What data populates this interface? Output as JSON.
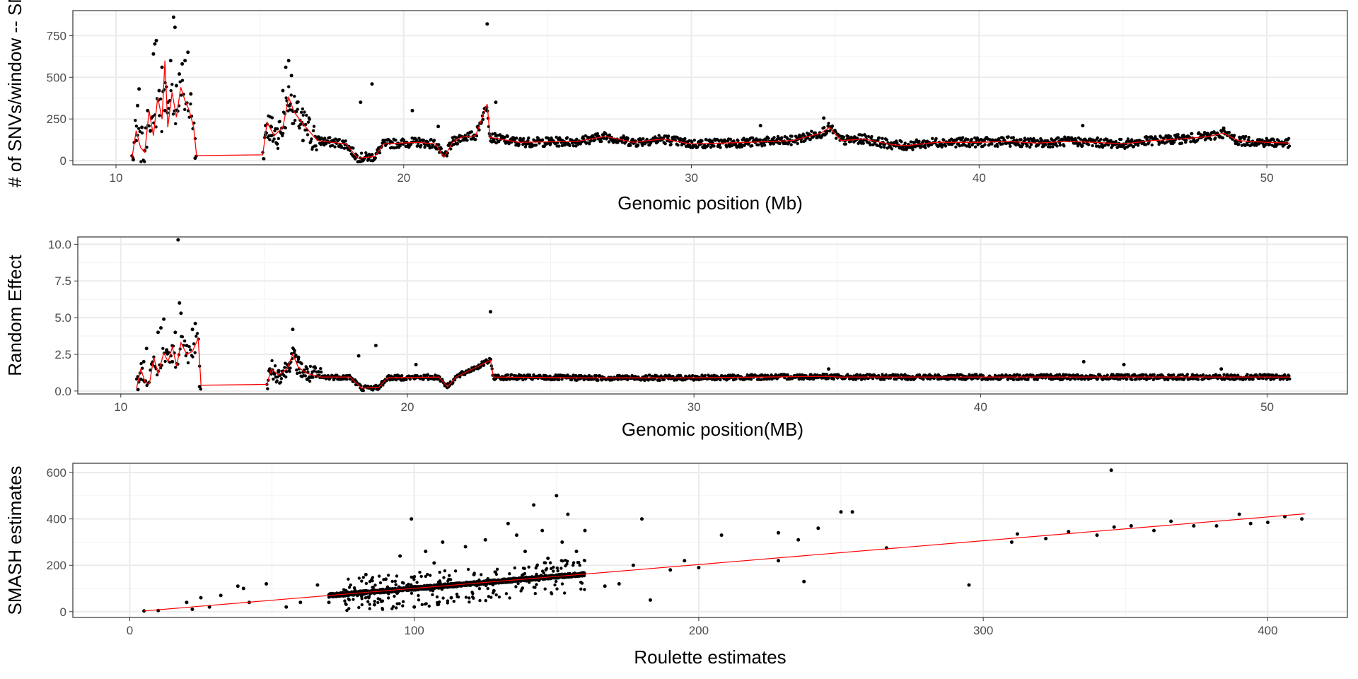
{
  "chart_data": [
    {
      "type": "scatter",
      "xlabel": "Genomic position (Mb)",
      "ylabel": "# of SNVs/window -- SM",
      "xlim": [
        8.5,
        52.8
      ],
      "ylim": [
        -25,
        900
      ],
      "xticks": [
        10,
        20,
        30,
        40,
        50
      ],
      "yticks": [
        0,
        250,
        500,
        750
      ],
      "grid": true,
      "legend": "none",
      "series": [
        {
          "points": [
            [
              10.6,
              5
            ],
            [
              10.7,
              120
            ],
            [
              10.75,
              330
            ],
            [
              10.8,
              430
            ],
            [
              10.9,
              200
            ],
            [
              11.0,
              60
            ],
            [
              11.1,
              300
            ],
            [
              11.2,
              180
            ],
            [
              11.3,
              640
            ],
            [
              11.35,
              700
            ],
            [
              11.4,
              720
            ],
            [
              11.5,
              420
            ],
            [
              11.6,
              560
            ],
            [
              11.7,
              300
            ],
            [
              11.8,
              350
            ],
            [
              11.9,
              600
            ],
            [
              12.0,
              860
            ],
            [
              12.05,
              800
            ],
            [
              12.1,
              450
            ],
            [
              12.2,
              520
            ],
            [
              12.3,
              580
            ],
            [
              12.4,
              600
            ],
            [
              12.5,
              650
            ],
            [
              12.6,
              400
            ],
            [
              12.75,
              15
            ],
            [
              15.2,
              210
            ],
            [
              15.4,
              150
            ],
            [
              15.6,
              100
            ],
            [
              15.8,
              420
            ],
            [
              15.9,
              560
            ],
            [
              16.0,
              600
            ],
            [
              16.1,
              510
            ],
            [
              16.3,
              350
            ],
            [
              16.5,
              120
            ],
            [
              18.5,
              350
            ],
            [
              18.9,
              460
            ],
            [
              20.3,
              300
            ],
            [
              21.2,
              205
            ],
            [
              22.9,
              820
            ],
            [
              23.2,
              350
            ],
            [
              32.4,
              210
            ],
            [
              34.6,
              255
            ],
            [
              43.6,
              210
            ],
            [
              48.5,
              195
            ]
          ]
        }
      ],
      "trend": {
        "color": "#ff0000",
        "points": [
          [
            10.55,
            10
          ],
          [
            10.7,
            180
          ],
          [
            10.85,
            80
          ],
          [
            11.0,
            50
          ],
          [
            11.15,
            300
          ],
          [
            11.3,
            150
          ],
          [
            11.45,
            380
          ],
          [
            11.6,
            250
          ],
          [
            11.7,
            600
          ],
          [
            11.8,
            200
          ],
          [
            11.95,
            410
          ],
          [
            12.1,
            260
          ],
          [
            12.25,
            440
          ],
          [
            12.4,
            360
          ],
          [
            12.55,
            300
          ],
          [
            12.7,
            200
          ],
          [
            12.8,
            30
          ],
          [
            15.1,
            35
          ],
          [
            15.25,
            230
          ],
          [
            15.5,
            150
          ],
          [
            15.8,
            200
          ],
          [
            16.0,
            380
          ],
          [
            16.2,
            290
          ],
          [
            16.5,
            220
          ],
          [
            17.0,
            120
          ],
          [
            18.0,
            100
          ],
          [
            18.4,
            15
          ],
          [
            19.0,
            25
          ],
          [
            19.3,
            100
          ],
          [
            20.5,
            110
          ],
          [
            21.1,
            100
          ],
          [
            21.4,
            20
          ],
          [
            21.7,
            110
          ],
          [
            22.0,
            140
          ],
          [
            22.5,
            150
          ],
          [
            22.9,
            340
          ],
          [
            23.0,
            140
          ],
          [
            24.0,
            110
          ],
          [
            26.0,
            115
          ],
          [
            27.0,
            145
          ],
          [
            28.0,
            110
          ],
          [
            29.0,
            130
          ],
          [
            30.0,
            100
          ],
          [
            32.0,
            110
          ],
          [
            33.5,
            120
          ],
          [
            34.5,
            165
          ],
          [
            34.8,
            200
          ],
          [
            35.2,
            120
          ],
          [
            36.0,
            130
          ],
          [
            37.0,
            95
          ],
          [
            37.5,
            90
          ],
          [
            38.5,
            110
          ],
          [
            40.0,
            110
          ],
          [
            41.0,
            115
          ],
          [
            42.0,
            105
          ],
          [
            43.0,
            115
          ],
          [
            44.0,
            110
          ],
          [
            45.0,
            100
          ],
          [
            46.0,
            120
          ],
          [
            47.0,
            130
          ],
          [
            48.0,
            145
          ],
          [
            48.5,
            165
          ],
          [
            49.0,
            120
          ],
          [
            49.5,
            115
          ],
          [
            50.0,
            110
          ],
          [
            50.8,
            105
          ]
        ]
      }
    },
    {
      "type": "scatter",
      "xlabel": "Genomic position(MB)",
      "ylabel": "Random Effect",
      "xlim": [
        8.5,
        52.8
      ],
      "ylim": [
        -0.2,
        10.5
      ],
      "xticks": [
        10,
        20,
        30,
        40,
        50
      ],
      "ytick_labels": [
        "0.0",
        "2.5",
        "5.0",
        "7.5",
        "10.0"
      ],
      "yticks": [
        0,
        2.5,
        5,
        7.5,
        10
      ],
      "grid": true,
      "legend": "none",
      "series": [
        {
          "points": [
            [
              10.6,
              0.1
            ],
            [
              10.7,
              0.8
            ],
            [
              10.8,
              2.0
            ],
            [
              10.9,
              2.9
            ],
            [
              11.1,
              1.8
            ],
            [
              11.3,
              4.0
            ],
            [
              11.4,
              4.3
            ],
            [
              11.5,
              4.9
            ],
            [
              11.6,
              2.8
            ],
            [
              11.8,
              2.0
            ],
            [
              11.9,
              4.0
            ],
            [
              12.0,
              10.3
            ],
            [
              12.05,
              6.0
            ],
            [
              12.1,
              5.3
            ],
            [
              12.3,
              3.1
            ],
            [
              12.5,
              4.2
            ],
            [
              12.6,
              4.6
            ],
            [
              12.75,
              0.3
            ],
            [
              15.2,
              1.5
            ],
            [
              15.5,
              1.3
            ],
            [
              15.9,
              1.9
            ],
            [
              16.0,
              4.2
            ],
            [
              16.2,
              2.3
            ],
            [
              16.5,
              0.8
            ],
            [
              18.3,
              2.4
            ],
            [
              18.9,
              3.1
            ],
            [
              20.3,
              1.8
            ],
            [
              22.9,
              5.4
            ],
            [
              23.1,
              1.0
            ],
            [
              34.7,
              1.5
            ],
            [
              43.6,
              2.0
            ],
            [
              45.0,
              1.8
            ],
            [
              48.4,
              1.5
            ]
          ]
        }
      ],
      "trend": {
        "color": "#ff0000",
        "points": [
          [
            10.55,
            0.2
          ],
          [
            10.7,
            1.5
          ],
          [
            10.85,
            0.6
          ],
          [
            11.0,
            0.5
          ],
          [
            11.15,
            2.3
          ],
          [
            11.3,
            1.2
          ],
          [
            11.5,
            2.6
          ],
          [
            11.65,
            2.0
          ],
          [
            11.8,
            3.0
          ],
          [
            11.95,
            1.7
          ],
          [
            12.1,
            3.3
          ],
          [
            12.3,
            2.5
          ],
          [
            12.5,
            2.7
          ],
          [
            12.7,
            3.6
          ],
          [
            12.8,
            0.4
          ],
          [
            15.1,
            0.45
          ],
          [
            15.25,
            1.5
          ],
          [
            15.5,
            1.1
          ],
          [
            15.8,
            1.5
          ],
          [
            16.0,
            2.5
          ],
          [
            16.2,
            1.6
          ],
          [
            16.5,
            1.2
          ],
          [
            17.0,
            0.95
          ],
          [
            18.0,
            0.95
          ],
          [
            18.4,
            0.2
          ],
          [
            19.0,
            0.25
          ],
          [
            19.3,
            0.9
          ],
          [
            21.1,
            0.95
          ],
          [
            21.4,
            0.3
          ],
          [
            21.7,
            0.95
          ],
          [
            22.9,
            2.1
          ],
          [
            23.0,
            0.95
          ],
          [
            26.0,
            0.9
          ],
          [
            30.0,
            0.9
          ],
          [
            34.7,
            1.0
          ],
          [
            35.0,
            0.95
          ],
          [
            40.0,
            0.95
          ],
          [
            45.0,
            0.95
          ],
          [
            50.8,
            0.95
          ]
        ]
      }
    },
    {
      "type": "scatter",
      "xlabel": "Roulette estimates",
      "ylabel": "SMASH estimates",
      "xlim": [
        -20,
        428
      ],
      "ylim": [
        -25,
        640
      ],
      "xticks": [
        0,
        100,
        200,
        300,
        400
      ],
      "yticks": [
        0,
        200,
        400,
        600
      ],
      "grid": true,
      "legend": "none",
      "series": [
        {
          "points": [
            [
              5,
              3
            ],
            [
              10,
              5
            ],
            [
              20,
              40
            ],
            [
              22,
              10
            ],
            [
              25,
              60
            ],
            [
              28,
              20
            ],
            [
              32,
              70
            ],
            [
              38,
              110
            ],
            [
              40,
              100
            ],
            [
              42,
              40
            ],
            [
              48,
              120
            ],
            [
              55,
              20
            ],
            [
              60,
              40
            ],
            [
              66,
              115
            ],
            [
              70,
              40
            ],
            [
              76,
              90
            ],
            [
              80,
              70
            ],
            [
              83,
              160
            ],
            [
              86,
              30
            ],
            [
              90,
              140
            ],
            [
              94,
              80
            ],
            [
              95,
              240
            ],
            [
              99,
              400
            ],
            [
              100,
              20
            ],
            [
              104,
              260
            ],
            [
              107,
              210
            ],
            [
              110,
              300
            ],
            [
              113,
              60
            ],
            [
              118,
              280
            ],
            [
              121,
              160
            ],
            [
              125,
              310
            ],
            [
              128,
              90
            ],
            [
              133,
              380
            ],
            [
              136,
              330
            ],
            [
              139,
              260
            ],
            [
              142,
              460
            ],
            [
              145,
              350
            ],
            [
              147,
              230
            ],
            [
              150,
              500
            ],
            [
              152,
              300
            ],
            [
              154,
              420
            ],
            [
              157,
              260
            ],
            [
              160,
              350
            ],
            [
              167,
              110
            ],
            [
              172,
              120
            ],
            [
              177,
              200
            ],
            [
              180,
              400
            ],
            [
              183,
              50
            ],
            [
              190,
              180
            ],
            [
              195,
              220
            ],
            [
              200,
              190
            ],
            [
              208,
              330
            ],
            [
              228,
              340
            ],
            [
              228,
              220
            ],
            [
              235,
              310
            ],
            [
              237,
              130
            ],
            [
              242,
              360
            ],
            [
              250,
              430
            ],
            [
              254,
              430
            ],
            [
              266,
              275
            ],
            [
              295,
              115
            ],
            [
              310,
              300
            ],
            [
              312,
              335
            ],
            [
              322,
              315
            ],
            [
              330,
              345
            ],
            [
              340,
              330
            ],
            [
              345,
              610
            ],
            [
              346,
              365
            ],
            [
              352,
              370
            ],
            [
              360,
              350
            ],
            [
              366,
              390
            ],
            [
              374,
              370
            ],
            [
              382,
              370
            ],
            [
              390,
              420
            ],
            [
              394,
              380
            ],
            [
              400,
              385
            ],
            [
              406,
              410
            ],
            [
              412,
              400
            ]
          ]
        }
      ],
      "trend": {
        "color": "#ff0000",
        "points": [
          [
            5,
            3
          ],
          [
            413,
            422
          ]
        ]
      },
      "dense_band": {
        "x": [
          70,
          160
        ],
        "y_start": [
          66,
          160
        ]
      }
    }
  ]
}
